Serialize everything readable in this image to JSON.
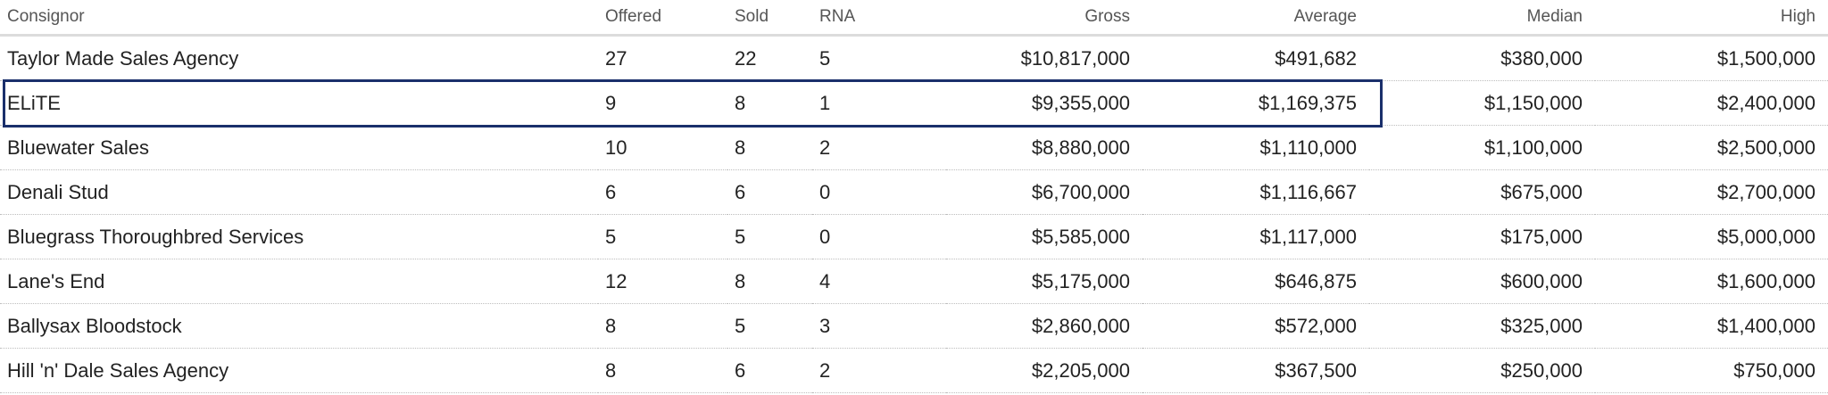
{
  "table": {
    "columns": [
      "Consignor",
      "Offered",
      "Sold",
      "RNA",
      "Gross",
      "Average",
      "Median",
      "High"
    ],
    "rows": [
      [
        "Taylor Made Sales Agency",
        "27",
        "22",
        "5",
        "$10,817,000",
        "$491,682",
        "$380,000",
        "$1,500,000"
      ],
      [
        "ELiTE",
        "9",
        "8",
        "1",
        "$9,355,000",
        "$1,169,375",
        "$1,150,000",
        "$2,400,000"
      ],
      [
        "Bluewater Sales",
        "10",
        "8",
        "2",
        "$8,880,000",
        "$1,110,000",
        "$1,100,000",
        "$2,500,000"
      ],
      [
        "Denali Stud",
        "6",
        "6",
        "0",
        "$6,700,000",
        "$1,116,667",
        "$675,000",
        "$2,700,000"
      ],
      [
        "Bluegrass Thoroughbred Services",
        "5",
        "5",
        "0",
        "$5,585,000",
        "$1,117,000",
        "$175,000",
        "$5,000,000"
      ],
      [
        "Lane's End",
        "12",
        "8",
        "4",
        "$5,175,000",
        "$646,875",
        "$600,000",
        "$1,600,000"
      ],
      [
        "Ballysax Bloodstock",
        "8",
        "5",
        "3",
        "$2,860,000",
        "$572,000",
        "$325,000",
        "$1,400,000"
      ],
      [
        "Hill 'n' Dale Sales Agency",
        "8",
        "6",
        "2",
        "$2,205,000",
        "$367,500",
        "$250,000",
        "$750,000"
      ]
    ]
  },
  "highlight": {
    "row": "ELiTE",
    "color": "#1a2f6b"
  }
}
